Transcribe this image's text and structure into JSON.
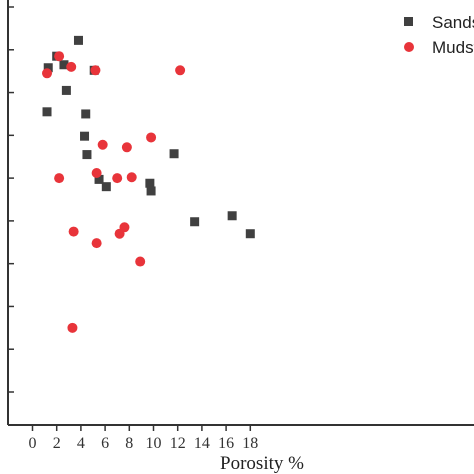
{
  "chart_data": {
    "type": "scatter",
    "xlabel": "Porosity %",
    "ylabel": "",
    "xlim": [
      -1,
      18
    ],
    "xticks": [
      0,
      2,
      4,
      6,
      8,
      10,
      12,
      14,
      16,
      18
    ],
    "xtick_labels": [
      "0",
      "2",
      "4",
      "6",
      "8",
      "10",
      "12",
      "14",
      "16",
      "18"
    ],
    "ylim": [
      0,
      10
    ],
    "yticks": [
      1,
      2,
      3,
      4,
      5,
      6,
      7,
      8,
      9,
      10
    ],
    "grid": false,
    "legend_position": "top-right",
    "series": [
      {
        "name": "Sandstone",
        "marker": "square",
        "color": "#404040",
        "points": [
          {
            "x": 1.2,
            "y": 7.55
          },
          {
            "x": 1.3,
            "y": 8.58
          },
          {
            "x": 2.0,
            "y": 8.85
          },
          {
            "x": 2.6,
            "y": 8.65
          },
          {
            "x": 2.8,
            "y": 8.05
          },
          {
            "x": 3.8,
            "y": 9.22
          },
          {
            "x": 4.3,
            "y": 6.98
          },
          {
            "x": 4.4,
            "y": 7.5
          },
          {
            "x": 4.5,
            "y": 6.55
          },
          {
            "x": 5.1,
            "y": 8.52
          },
          {
            "x": 5.5,
            "y": 5.97
          },
          {
            "x": 6.1,
            "y": 5.8
          },
          {
            "x": 9.7,
            "y": 5.88
          },
          {
            "x": 9.8,
            "y": 5.7
          },
          {
            "x": 11.7,
            "y": 6.57
          },
          {
            "x": 13.4,
            "y": 4.98
          },
          {
            "x": 16.5,
            "y": 5.12
          },
          {
            "x": 18.0,
            "y": 4.7
          }
        ]
      },
      {
        "name": "Mudstone",
        "marker": "circle",
        "color": "#e8343a",
        "points": [
          {
            "x": 1.2,
            "y": 8.45
          },
          {
            "x": 2.2,
            "y": 8.85
          },
          {
            "x": 2.2,
            "y": 6.0
          },
          {
            "x": 3.2,
            "y": 8.6
          },
          {
            "x": 3.3,
            "y": 2.5
          },
          {
            "x": 3.4,
            "y": 4.75
          },
          {
            "x": 5.2,
            "y": 8.52
          },
          {
            "x": 5.3,
            "y": 6.12
          },
          {
            "x": 5.3,
            "y": 4.48
          },
          {
            "x": 5.8,
            "y": 6.78
          },
          {
            "x": 7.0,
            "y": 6.0
          },
          {
            "x": 7.2,
            "y": 4.7
          },
          {
            "x": 7.6,
            "y": 4.85
          },
          {
            "x": 7.8,
            "y": 6.72
          },
          {
            "x": 8.2,
            "y": 6.02
          },
          {
            "x": 8.9,
            "y": 4.05
          },
          {
            "x": 9.8,
            "y": 6.95
          },
          {
            "x": 12.2,
            "y": 8.52
          }
        ]
      }
    ]
  },
  "legend": {
    "items": [
      {
        "label": "Sandstone",
        "marker": "square",
        "color": "#404040"
      },
      {
        "label": "Mudstone",
        "marker": "circle",
        "color": "#e8343a"
      }
    ]
  },
  "colors": {
    "axis": "#333333",
    "sandstone": "#404040",
    "mudstone": "#e8343a"
  }
}
